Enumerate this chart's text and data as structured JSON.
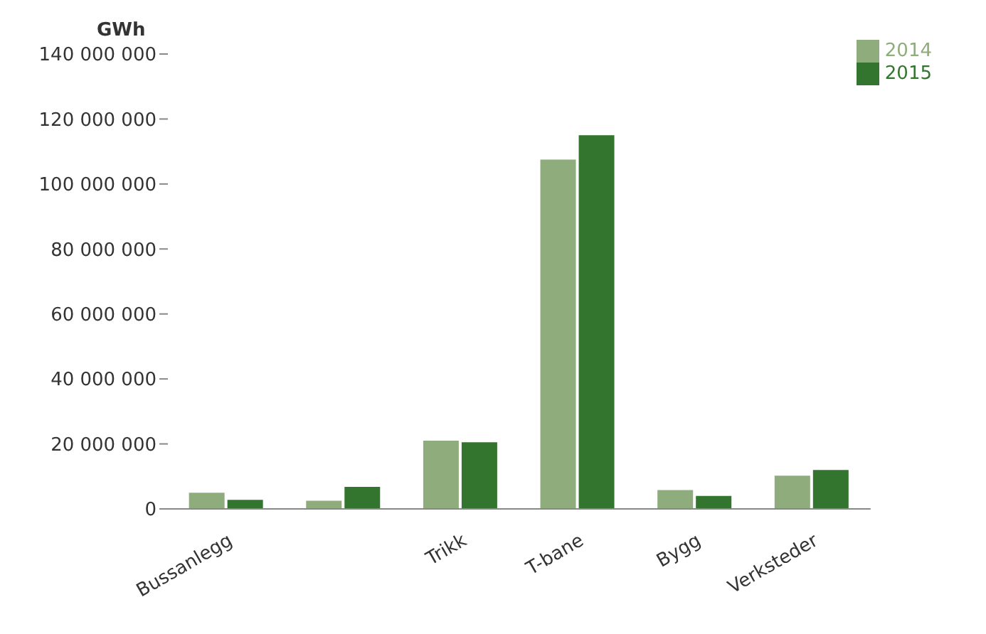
{
  "chart_data": {
    "type": "bar",
    "ylabel": "GWh",
    "categories": [
      "Bussanlegg",
      null,
      "Trikk",
      "T-bane",
      "Bygg",
      "Verksteder"
    ],
    "series": [
      {
        "name": "2014",
        "color": "#8fac7c",
        "values": [
          5000000,
          2500000,
          21000000,
          107500000,
          5800000,
          10200000
        ]
      },
      {
        "name": "2015",
        "color": "#33752f",
        "values": [
          2800000,
          6800000,
          20500000,
          115000000,
          4000000,
          12000000
        ]
      }
    ],
    "ylim": [
      0,
      140000000
    ],
    "yticks": [
      {
        "value": 0,
        "label": "0"
      },
      {
        "value": 20000000,
        "label": "20 000 000"
      },
      {
        "value": 40000000,
        "label": "40 000 000"
      },
      {
        "value": 60000000,
        "label": "60 000 000"
      },
      {
        "value": 80000000,
        "label": "80 000 000"
      },
      {
        "value": 100000000,
        "label": "100 000 000"
      },
      {
        "value": 120000000,
        "label": "120 000 000"
      },
      {
        "value": 140000000,
        "label": "140 000 000"
      }
    ],
    "grid": false,
    "legend": "top right"
  }
}
